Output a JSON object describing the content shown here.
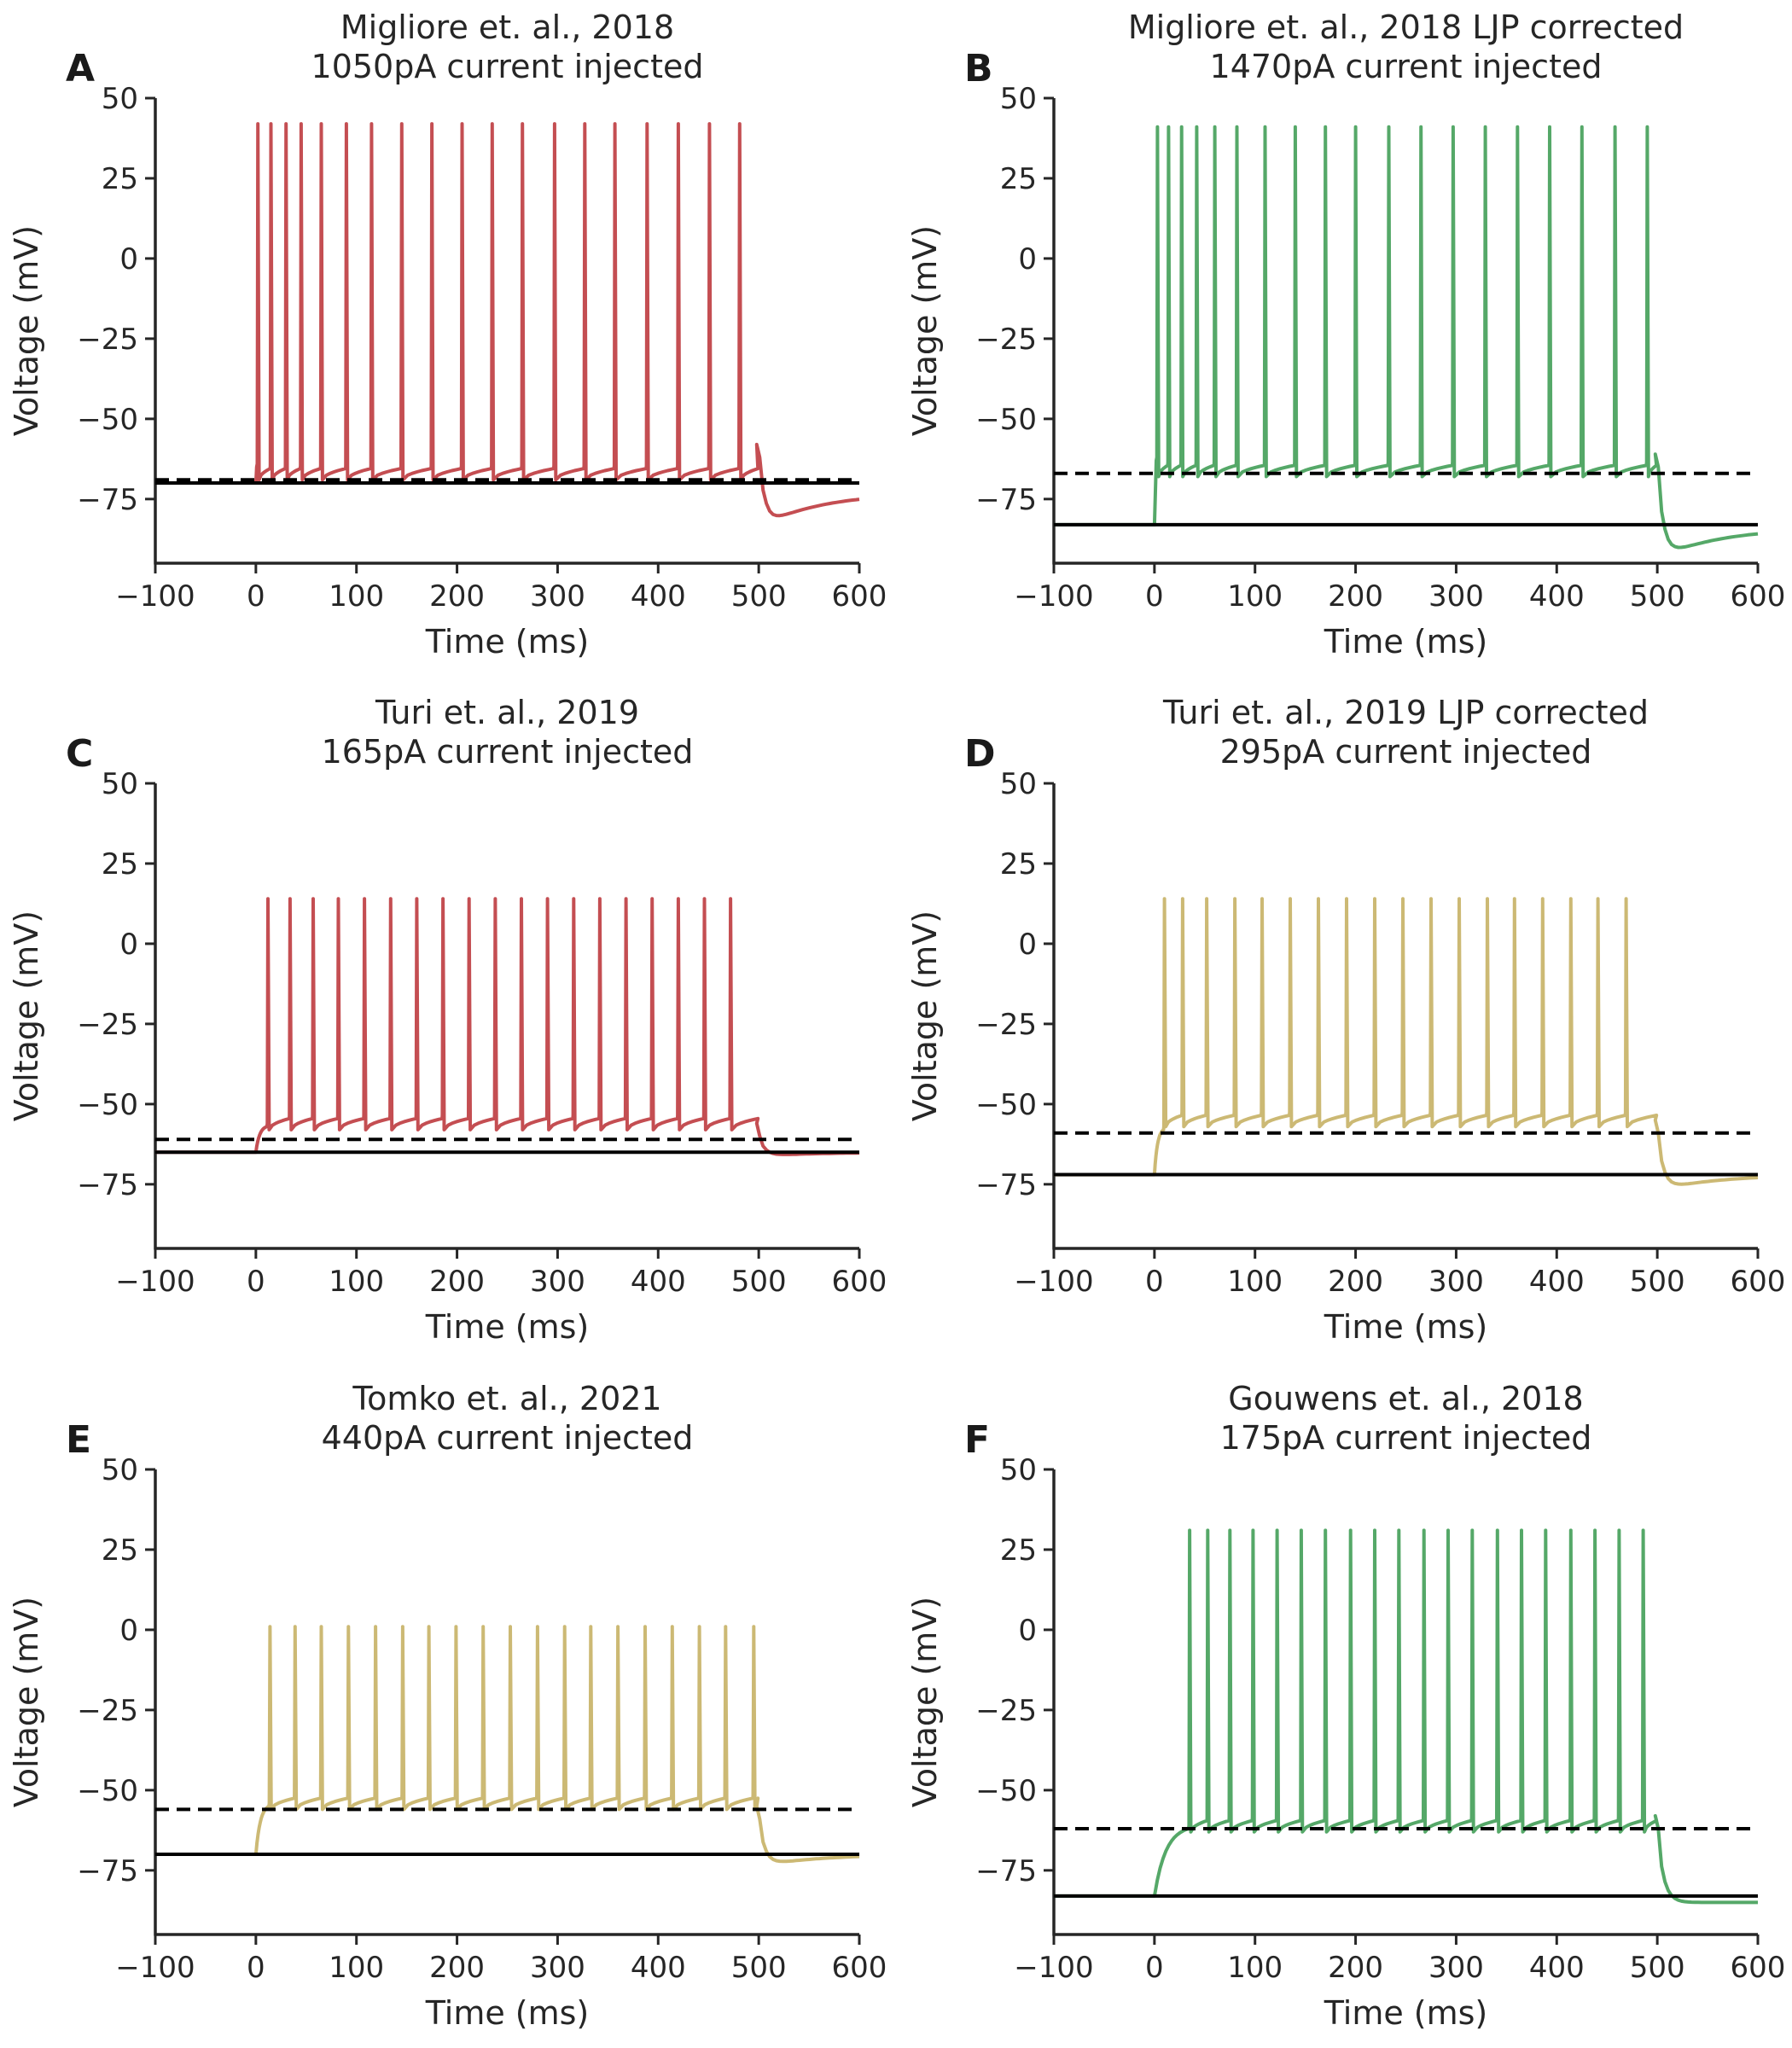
{
  "colors": {
    "red": "#c44e52",
    "green": "#55a868",
    "tan": "#ccb974",
    "axis": "#262626",
    "ref": "#000000"
  },
  "chart_data": [
    {
      "type": "line",
      "panel": "A",
      "title_line1": "Migliore et. al., 2018",
      "title_line2": "1050pA current injected",
      "xlabel": "Time (ms)",
      "ylabel": "Voltage (mV)",
      "xlim": [
        -100,
        600
      ],
      "ylim": [
        -95,
        50
      ],
      "xticks": [
        -100,
        0,
        100,
        200,
        300,
        400,
        500,
        600
      ],
      "xtick_labels": [
        "−100",
        "0",
        "100",
        "200",
        "300",
        "400",
        "500",
        "600"
      ],
      "yticks": [
        50,
        25,
        0,
        -25,
        -50,
        -75
      ],
      "ytick_labels": [
        "50",
        "25",
        "0",
        "−25",
        "−50",
        "−75"
      ],
      "color": "red",
      "resting_potential": -70,
      "rest_start": -70,
      "threshold_line": -69,
      "spike_peak": 42,
      "trough": -68,
      "first_trough": -65,
      "spike_times": [
        2,
        15,
        30,
        45,
        65,
        90,
        115,
        145,
        175,
        205,
        235,
        265,
        297,
        327,
        357,
        389,
        420,
        451,
        481
      ],
      "stim_end": 500,
      "end_bump": -58,
      "undershoot": -82,
      "final": -73,
      "series": [
        {
          "name": "",
          "style": "solid",
          "value": -70
        },
        {
          "name": "",
          "style": "dashed",
          "value": -69
        }
      ]
    },
    {
      "type": "line",
      "panel": "B",
      "title_line1": "Migliore et. al., 2018 LJP corrected",
      "title_line2": "1470pA current injected",
      "xlabel": "Time (ms)",
      "ylabel": "Voltage (mV)",
      "xlim": [
        -100,
        600
      ],
      "ylim": [
        -95,
        50
      ],
      "xticks": [
        -100,
        0,
        100,
        200,
        300,
        400,
        500,
        600
      ],
      "xtick_labels": [
        "−100",
        "0",
        "100",
        "200",
        "300",
        "400",
        "500",
        "600"
      ],
      "yticks": [
        50,
        25,
        0,
        -25,
        -50,
        -75
      ],
      "ytick_labels": [
        "50",
        "25",
        "0",
        "−25",
        "−50",
        "−75"
      ],
      "color": "green",
      "resting_potential": -83,
      "rest_start": -83,
      "threshold_line": -67,
      "spike_peak": 41,
      "trough": -67,
      "first_trough": -63,
      "spike_times": [
        3,
        14,
        27,
        42,
        60,
        82,
        110,
        140,
        170,
        200,
        233,
        265,
        297,
        329,
        361,
        393,
        425,
        458,
        490
      ],
      "stim_end": 500,
      "end_bump": -61,
      "undershoot": -92,
      "final": -84,
      "series": [
        {
          "name": "",
          "style": "solid",
          "value": -83
        },
        {
          "name": "",
          "style": "dashed",
          "value": -67
        }
      ]
    },
    {
      "type": "line",
      "panel": "C",
      "title_line1": "Turi et. al., 2019",
      "title_line2": "165pA current injected",
      "xlabel": "Time (ms)",
      "ylabel": "Voltage (mV)",
      "xlim": [
        -100,
        600
      ],
      "ylim": [
        -95,
        50
      ],
      "xticks": [
        -100,
        0,
        100,
        200,
        300,
        400,
        500,
        600
      ],
      "xtick_labels": [
        "−100",
        "0",
        "100",
        "200",
        "300",
        "400",
        "500",
        "600"
      ],
      "yticks": [
        50,
        25,
        0,
        -25,
        -50,
        -75
      ],
      "ytick_labels": [
        "50",
        "25",
        "0",
        "−25",
        "−50",
        "−75"
      ],
      "color": "red",
      "resting_potential": -65,
      "rest_start": -65,
      "threshold_line": -61,
      "spike_peak": 14,
      "trough": -57,
      "first_trough": -57,
      "spike_times": [
        12,
        34,
        57,
        82,
        108,
        134,
        160,
        186,
        212,
        238,
        264,
        290,
        316,
        342,
        368,
        394,
        420,
        446,
        472
      ],
      "stim_end": 500,
      "end_bump": -56,
      "undershoot": -66,
      "final": -65,
      "series": [
        {
          "name": "",
          "style": "solid",
          "value": -65
        },
        {
          "name": "",
          "style": "dashed",
          "value": -61
        }
      ]
    },
    {
      "type": "line",
      "panel": "D",
      "title_line1": "Turi et. al., 2019 LJP corrected",
      "title_line2": "295pA current injected",
      "xlabel": "Time (ms)",
      "ylabel": "Voltage (mV)",
      "xlim": [
        -100,
        600
      ],
      "ylim": [
        -95,
        50
      ],
      "xticks": [
        -100,
        0,
        100,
        200,
        300,
        400,
        500,
        600
      ],
      "xtick_labels": [
        "−100",
        "0",
        "100",
        "200",
        "300",
        "400",
        "500",
        "600"
      ],
      "yticks": [
        50,
        25,
        0,
        -25,
        -50,
        -75
      ],
      "ytick_labels": [
        "50",
        "25",
        "0",
        "−25",
        "−50",
        "−75"
      ],
      "color": "tan",
      "resting_potential": -72,
      "rest_start": -72,
      "threshold_line": -59,
      "spike_peak": 14,
      "trough": -56,
      "first_trough": -58,
      "spike_times": [
        10,
        28,
        52,
        80,
        107,
        135,
        163,
        191,
        219,
        247,
        275,
        303,
        331,
        358,
        386,
        414,
        441,
        469
      ],
      "stim_end": 500,
      "end_bump": -55,
      "undershoot": -76,
      "final": -72,
      "series": [
        {
          "name": "",
          "style": "solid",
          "value": -72
        },
        {
          "name": "",
          "style": "dashed",
          "value": -59
        }
      ]
    },
    {
      "type": "line",
      "panel": "E",
      "title_line1": "Tomko et. al., 2021",
      "title_line2": "440pA current injected",
      "xlabel": "Time (ms)",
      "ylabel": "Voltage (mV)",
      "xlim": [
        -100,
        600
      ],
      "ylim": [
        -95,
        50
      ],
      "xticks": [
        -100,
        0,
        100,
        200,
        300,
        400,
        500,
        600
      ],
      "xtick_labels": [
        "−100",
        "0",
        "100",
        "200",
        "300",
        "400",
        "500",
        "600"
      ],
      "yticks": [
        50,
        25,
        0,
        -25,
        -50,
        -75
      ],
      "ytick_labels": [
        "50",
        "25",
        "0",
        "−25",
        "−50",
        "−75"
      ],
      "color": "tan",
      "resting_potential": -70,
      "rest_start": -70,
      "threshold_line": -56,
      "spike_peak": 1,
      "trough": -55,
      "first_trough": -55,
      "spike_times": [
        14,
        39,
        65,
        92,
        119,
        146,
        172,
        199,
        226,
        253,
        280,
        307,
        333,
        360,
        387,
        414,
        441,
        467,
        495
      ],
      "stim_end": 500,
      "end_bump": -55,
      "undershoot": -73,
      "final": -70,
      "series": [
        {
          "name": "",
          "style": "solid",
          "value": -70
        },
        {
          "name": "",
          "style": "dashed",
          "value": -56
        }
      ]
    },
    {
      "type": "line",
      "panel": "F",
      "title_line1": "Gouwens et. al., 2018",
      "title_line2": "175pA current injected",
      "xlabel": "Time (ms)",
      "ylabel": "Voltage (mV)",
      "xlim": [
        -100,
        600
      ],
      "ylim": [
        -95,
        50
      ],
      "xticks": [
        -100,
        0,
        100,
        200,
        300,
        400,
        500,
        600
      ],
      "xtick_labels": [
        "−100",
        "0",
        "100",
        "200",
        "300",
        "400",
        "500",
        "600"
      ],
      "yticks": [
        50,
        25,
        0,
        -25,
        -50,
        -75
      ],
      "ytick_labels": [
        "50",
        "25",
        "0",
        "−25",
        "−50",
        "−75"
      ],
      "color": "green",
      "resting_potential": -83,
      "rest_start": -83,
      "threshold_line": -62,
      "spike_peak": 31,
      "trough": -62,
      "first_trough": -62,
      "spike_times": [
        35,
        53,
        75,
        98,
        122,
        146,
        170,
        195,
        219,
        243,
        268,
        292,
        316,
        341,
        365,
        389,
        414,
        438,
        462,
        486
      ],
      "stim_end": 500,
      "end_bump": -58,
      "undershoot": -85,
      "final": -85,
      "series": [
        {
          "name": "",
          "style": "solid",
          "value": -83
        },
        {
          "name": "",
          "style": "dashed",
          "value": -62
        }
      ]
    }
  ]
}
